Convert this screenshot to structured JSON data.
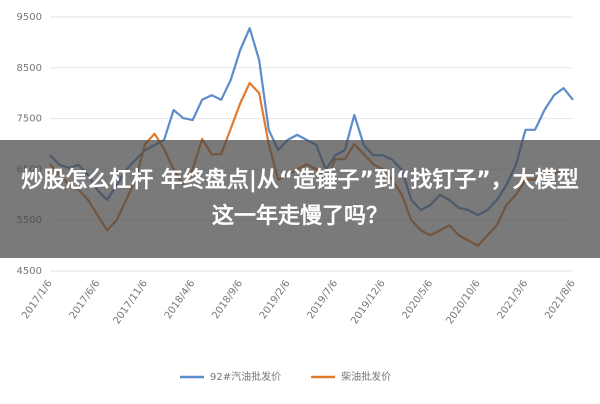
{
  "headline": "炒股怎么杠杆 年终盘点|从“造锤子”到“找钉子”，大模型这一年走慢了吗？",
  "chart_data": {
    "type": "line",
    "categories": [
      "2017/1/6",
      null,
      null,
      null,
      null,
      "2017/6/6",
      null,
      null,
      null,
      null,
      "2017/11/6",
      null,
      null,
      null,
      null,
      "2018/4/6",
      null,
      null,
      null,
      null,
      "2018/9/6",
      null,
      null,
      null,
      null,
      "2019/2/6",
      null,
      null,
      null,
      null,
      "2019/7/6",
      null,
      null,
      null,
      null,
      "2019/12/6",
      null,
      null,
      null,
      null,
      "2020/5/6",
      null,
      null,
      null,
      null,
      "2020/10/6",
      null,
      null,
      null,
      null,
      "2021/3/6",
      null,
      null,
      null,
      null,
      "2021/8/6"
    ],
    "series": [
      {
        "name": "92#汽油批发价",
        "color": "#5b8ccc",
        "values": [
          6780,
          6590,
          6530,
          6590,
          6390,
          6090,
          5900,
          6190,
          6490,
          6690,
          6880,
          6980,
          7080,
          7670,
          7510,
          7470,
          7870,
          7960,
          7870,
          8260,
          8850,
          9280,
          8650,
          7280,
          6880,
          7080,
          7180,
          7080,
          6980,
          6490,
          6780,
          6880,
          7570,
          6980,
          6780,
          6780,
          6690,
          6490,
          5900,
          5700,
          5800,
          6000,
          5900,
          5740,
          5700,
          5600,
          5700,
          5900,
          6190,
          6590,
          7280,
          7280,
          7670,
          7960,
          8100,
          7870
        ]
      },
      {
        "name": "柴油批发价",
        "color": "#e07b2e",
        "values": [
          6600,
          6400,
          6200,
          6100,
          5900,
          5600,
          5300,
          5500,
          5900,
          6300,
          7000,
          7200,
          6900,
          6500,
          6200,
          6500,
          7100,
          6800,
          6800,
          7300,
          7800,
          8200,
          8000,
          7000,
          6300,
          6400,
          6500,
          6600,
          6500,
          6300,
          6700,
          6700,
          7000,
          6800,
          6600,
          6500,
          6300,
          6000,
          5500,
          5300,
          5200,
          5300,
          5400,
          5200,
          5100,
          5000,
          5200,
          5400,
          5800,
          6000,
          6300,
          6300,
          6500,
          6400,
          6500,
          6300
        ]
      }
    ],
    "ylim": [
      4500,
      9500
    ],
    "yticks": [
      4500,
      5500,
      6500,
      7500,
      8500,
      9500
    ],
    "grid": true
  }
}
